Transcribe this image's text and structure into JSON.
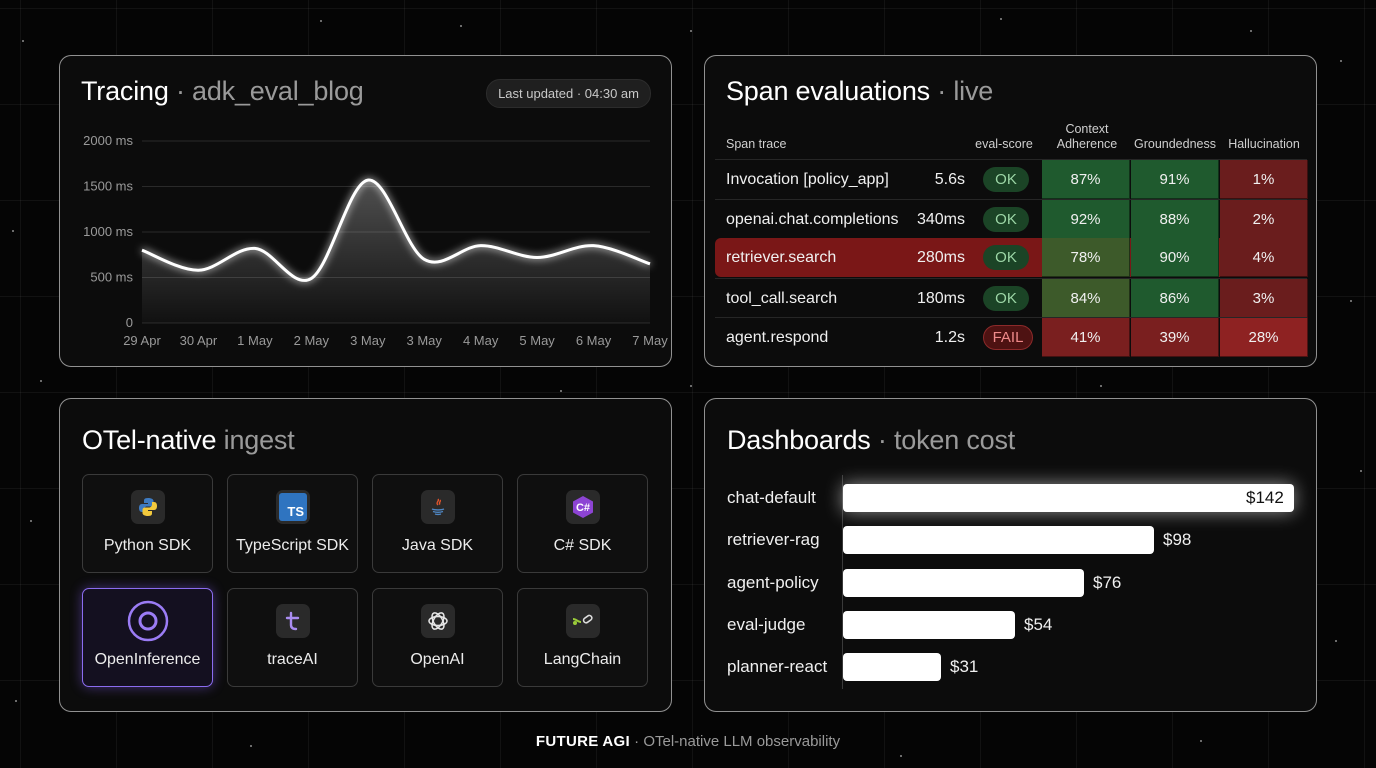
{
  "tracing": {
    "title": "Tracing",
    "subtitle": "· adk_eval_blog",
    "updated": "Last updated · 04:30 am"
  },
  "chart_data": {
    "type": "area",
    "x": [
      "29 Apr",
      "30 Apr",
      "1 May",
      "2 May",
      "3 May",
      "3 May",
      "4 May",
      "5 May",
      "6 May",
      "7 May"
    ],
    "y_ticks": [
      "2000 ms",
      "1500 ms",
      "1000 ms",
      "500 ms",
      "0"
    ],
    "ylim": [
      0,
      2000
    ],
    "values": [
      800,
      580,
      820,
      490,
      1570,
      700,
      850,
      720,
      850,
      650
    ],
    "grid": true,
    "title": "",
    "xlabel": "",
    "ylabel": ""
  },
  "spans": {
    "title": "Span evaluations",
    "subtitle": "· live",
    "headers": {
      "trace": "Span trace",
      "score": "eval-score",
      "context": "Context Adherence",
      "ground": "Groundedness",
      "halluc": "Hallucination"
    },
    "rows": [
      {
        "name": "Invocation [policy_app]",
        "dur": "5.6s",
        "status": "OK",
        "context": "87%",
        "ground": "91%",
        "halluc": "1%"
      },
      {
        "name": "openai.chat.completions",
        "dur": "340ms",
        "status": "OK",
        "context": "92%",
        "ground": "88%",
        "halluc": "2%"
      },
      {
        "name": "retriever.search",
        "dur": "280ms",
        "status": "OK",
        "context": "78%",
        "ground": "90%",
        "halluc": "4%"
      },
      {
        "name": "tool_call.search",
        "dur": "180ms",
        "status": "OK",
        "context": "84%",
        "ground": "86%",
        "halluc": "3%"
      },
      {
        "name": "agent.respond",
        "dur": "1.2s",
        "status": "FAIL",
        "context": "41%",
        "ground": "39%",
        "halluc": "28%"
      }
    ],
    "colors": {
      "good": "#1f5a2e",
      "mid": "#3d5a2a",
      "bad": "#7a1f1f",
      "hl": "#7a1717"
    }
  },
  "otel": {
    "title": "OTel-native",
    "subtitle": "ingest",
    "items": [
      {
        "label": "Python SDK",
        "icon": "python-icon"
      },
      {
        "label": "TypeScript SDK",
        "icon": "typescript-icon"
      },
      {
        "label": "Java SDK",
        "icon": "java-icon"
      },
      {
        "label": "C# SDK",
        "icon": "csharp-icon"
      },
      {
        "label": "OpenInference",
        "icon": "openinference-icon"
      },
      {
        "label": "traceAI",
        "icon": "traceai-icon"
      },
      {
        "label": "OpenAI",
        "icon": "openai-icon"
      },
      {
        "label": "LangChain",
        "icon": "langchain-icon"
      }
    ],
    "ts_glyph": "TS",
    "active_color": "#8b6cf0"
  },
  "dash": {
    "title": "Dashboards",
    "subtitle": "· token cost",
    "bars": [
      {
        "name": "chat-default",
        "value": 142,
        "label": "$142"
      },
      {
        "name": "retriever-rag",
        "value": 98,
        "label": "$98"
      },
      {
        "name": "agent-policy",
        "value": 76,
        "label": "$76"
      },
      {
        "name": "eval-judge",
        "value": 54,
        "label": "$54"
      },
      {
        "name": "planner-react",
        "value": 31,
        "label": "$31"
      }
    ]
  },
  "footer": {
    "brand": "FUTURE AGI",
    "tagline": "· OTel-native LLM observability"
  }
}
